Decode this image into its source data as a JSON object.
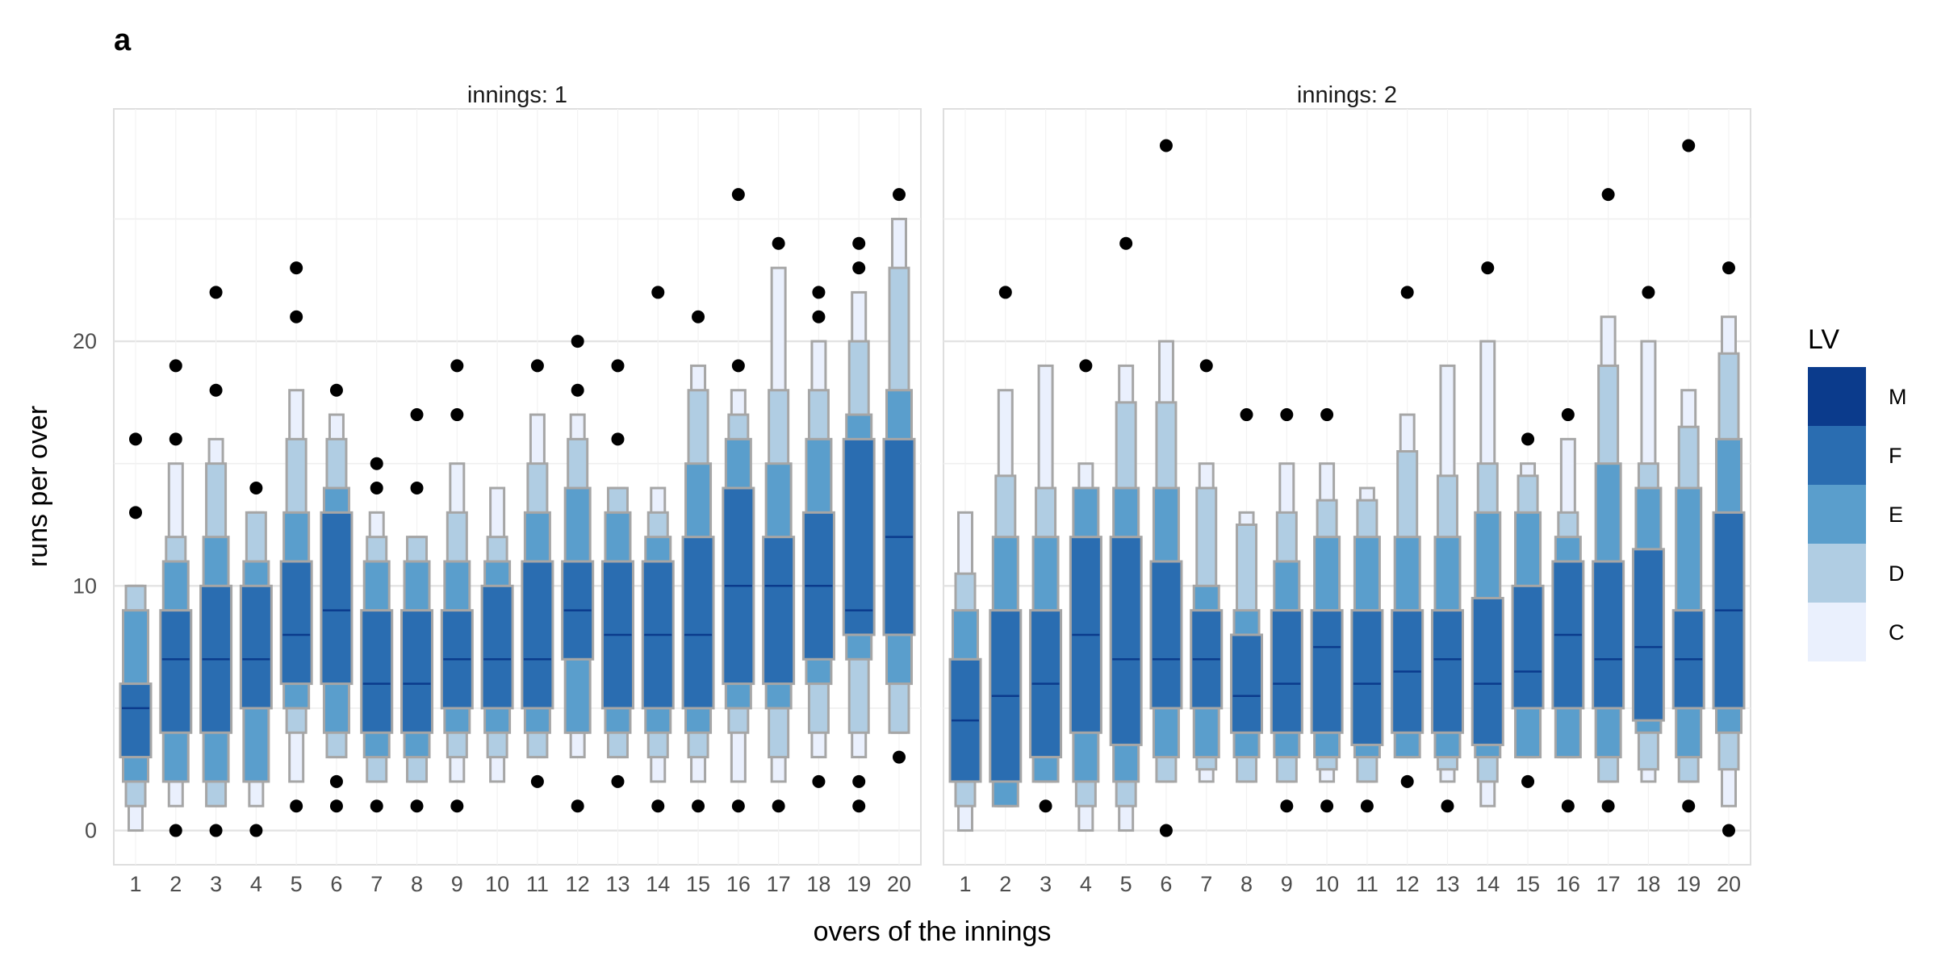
{
  "panel_tag": "a",
  "legend": {
    "title": "LV",
    "levels": [
      "M",
      "F",
      "E",
      "D",
      "C"
    ],
    "colors": {
      "M": "#0b3b8c",
      "F": "#2a6db1",
      "E": "#5a9ecc",
      "D": "#b0cde3",
      "C": "#eaf0fd"
    },
    "border_color": "#a6a6a6"
  },
  "chart_data": {
    "type": "letter-value boxplot",
    "xlabel": "overs of the innings",
    "ylabel": "runs per over",
    "ylim": [
      -1.4,
      29.5
    ],
    "yticks": [
      0,
      10,
      20
    ],
    "grid": true,
    "legend_placement": "right",
    "x_ticks": [
      "1",
      "2",
      "3",
      "4",
      "5",
      "6",
      "7",
      "8",
      "9",
      "10",
      "11",
      "12",
      "13",
      "14",
      "15",
      "16",
      "17",
      "18",
      "19",
      "20"
    ],
    "panels": [
      {
        "strip": "innings: 1",
        "overs": [
          {
            "over": 1,
            "M": 5,
            "F": [
              3,
              6
            ],
            "E": [
              2,
              9
            ],
            "D": [
              1,
              10
            ],
            "C": [
              0,
              10
            ],
            "outliers": [
              13,
              16
            ]
          },
          {
            "over": 2,
            "M": 7,
            "F": [
              4,
              9
            ],
            "E": [
              2,
              11
            ],
            "D": [
              2,
              12
            ],
            "C": [
              1,
              15
            ],
            "outliers": [
              0,
              16,
              19
            ]
          },
          {
            "over": 3,
            "M": 7,
            "F": [
              4,
              10
            ],
            "E": [
              2,
              12
            ],
            "D": [
              1,
              15
            ],
            "C": [
              1,
              16
            ],
            "outliers": [
              0,
              18,
              22
            ]
          },
          {
            "over": 4,
            "M": 7,
            "F": [
              5,
              10
            ],
            "E": [
              2,
              11
            ],
            "D": [
              2,
              13
            ],
            "C": [
              1,
              13
            ],
            "outliers": [
              0,
              14
            ]
          },
          {
            "over": 5,
            "M": 8,
            "F": [
              6,
              11
            ],
            "E": [
              5,
              13
            ],
            "D": [
              4,
              16
            ],
            "C": [
              2,
              18
            ],
            "outliers": [
              1,
              21,
              23
            ]
          },
          {
            "over": 6,
            "M": 9,
            "F": [
              6,
              13
            ],
            "E": [
              4,
              14
            ],
            "D": [
              3,
              16
            ],
            "C": [
              3,
              17
            ],
            "outliers": [
              1,
              2,
              18
            ]
          },
          {
            "over": 7,
            "M": 6,
            "F": [
              4,
              9
            ],
            "E": [
              3,
              11
            ],
            "D": [
              2,
              12
            ],
            "C": [
              2,
              13
            ],
            "outliers": [
              1,
              14,
              15
            ]
          },
          {
            "over": 8,
            "M": 6,
            "F": [
              4,
              9
            ],
            "E": [
              3,
              11
            ],
            "D": [
              2,
              12
            ],
            "C": [
              2,
              12
            ],
            "outliers": [
              1,
              14,
              17
            ]
          },
          {
            "over": 9,
            "M": 7,
            "F": [
              5,
              9
            ],
            "E": [
              4,
              11
            ],
            "D": [
              3,
              13
            ],
            "C": [
              2,
              15
            ],
            "outliers": [
              1,
              17,
              19
            ]
          },
          {
            "over": 10,
            "M": 7,
            "F": [
              5,
              10
            ],
            "E": [
              4,
              11
            ],
            "D": [
              3,
              12
            ],
            "C": [
              2,
              14
            ],
            "outliers": []
          },
          {
            "over": 11,
            "M": 7,
            "F": [
              5,
              11
            ],
            "E": [
              4,
              13
            ],
            "D": [
              3,
              15
            ],
            "C": [
              3,
              17
            ],
            "outliers": [
              2,
              19
            ]
          },
          {
            "over": 12,
            "M": 9,
            "F": [
              7,
              11
            ],
            "E": [
              4,
              14
            ],
            "D": [
              4,
              16
            ],
            "C": [
              3,
              17
            ],
            "outliers": [
              1,
              18,
              20
            ]
          },
          {
            "over": 13,
            "M": 8,
            "F": [
              5,
              11
            ],
            "E": [
              4,
              13
            ],
            "D": [
              3,
              14
            ],
            "C": [
              3,
              14
            ],
            "outliers": [
              2,
              16,
              19
            ]
          },
          {
            "over": 14,
            "M": 8,
            "F": [
              5,
              11
            ],
            "E": [
              4,
              12
            ],
            "D": [
              3,
              13
            ],
            "C": [
              2,
              14
            ],
            "outliers": [
              1,
              22
            ]
          },
          {
            "over": 15,
            "M": 8,
            "F": [
              5,
              12
            ],
            "E": [
              4,
              15
            ],
            "D": [
              3,
              18
            ],
            "C": [
              2,
              19
            ],
            "outliers": [
              1,
              21
            ]
          },
          {
            "over": 16,
            "M": 10,
            "F": [
              6,
              14
            ],
            "E": [
              5,
              16
            ],
            "D": [
              4,
              17
            ],
            "C": [
              2,
              18
            ],
            "outliers": [
              1,
              19,
              26
            ]
          },
          {
            "over": 17,
            "M": 10,
            "F": [
              6,
              12
            ],
            "E": [
              5,
              15
            ],
            "D": [
              3,
              18
            ],
            "C": [
              2,
              23
            ],
            "outliers": [
              1,
              24
            ]
          },
          {
            "over": 18,
            "M": 10,
            "F": [
              7,
              13
            ],
            "E": [
              6,
              16
            ],
            "D": [
              4,
              18
            ],
            "C": [
              3,
              20
            ],
            "outliers": [
              2,
              21,
              22
            ]
          },
          {
            "over": 19,
            "M": 9,
            "F": [
              8,
              16
            ],
            "E": [
              7,
              17
            ],
            "D": [
              4,
              20
            ],
            "C": [
              3,
              22
            ],
            "outliers": [
              1,
              2,
              23,
              24
            ]
          },
          {
            "over": 20,
            "M": 12,
            "F": [
              8,
              16
            ],
            "E": [
              6,
              18
            ],
            "D": [
              4,
              23
            ],
            "C": [
              4,
              25
            ],
            "outliers": [
              3,
              26
            ]
          }
        ]
      },
      {
        "strip": "innings: 2",
        "overs": [
          {
            "over": 1,
            "M": 4.5,
            "F": [
              2,
              7
            ],
            "E": [
              2,
              9
            ],
            "D": [
              1,
              10.5
            ],
            "C": [
              0,
              13
            ],
            "outliers": []
          },
          {
            "over": 2,
            "M": 5.5,
            "F": [
              2,
              9
            ],
            "E": [
              1,
              12
            ],
            "D": [
              1,
              14.5
            ],
            "C": [
              1,
              18
            ],
            "outliers": [
              22
            ]
          },
          {
            "over": 3,
            "M": 6,
            "F": [
              3,
              9
            ],
            "E": [
              2,
              12
            ],
            "D": [
              2,
              14
            ],
            "C": [
              2,
              19
            ],
            "outliers": [
              1
            ]
          },
          {
            "over": 4,
            "M": 8,
            "F": [
              4,
              12
            ],
            "E": [
              2,
              14
            ],
            "D": [
              1,
              14
            ],
            "C": [
              0,
              15
            ],
            "outliers": [
              19
            ]
          },
          {
            "over": 5,
            "M": 7,
            "F": [
              3.5,
              12
            ],
            "E": [
              2,
              14
            ],
            "D": [
              1,
              17.5
            ],
            "C": [
              0,
              19
            ],
            "outliers": [
              24
            ]
          },
          {
            "over": 6,
            "M": 7,
            "F": [
              5,
              11
            ],
            "E": [
              3,
              14
            ],
            "D": [
              2,
              17.5
            ],
            "C": [
              2,
              20
            ],
            "outliers": [
              0,
              28
            ]
          },
          {
            "over": 7,
            "M": 7,
            "F": [
              5,
              9
            ],
            "E": [
              3,
              10
            ],
            "D": [
              2.5,
              14
            ],
            "C": [
              2,
              15
            ],
            "outliers": [
              19
            ]
          },
          {
            "over": 8,
            "M": 5.5,
            "F": [
              4,
              8
            ],
            "E": [
              3,
              9
            ],
            "D": [
              2,
              12.5
            ],
            "C": [
              2,
              13
            ],
            "outliers": [
              17
            ]
          },
          {
            "over": 9,
            "M": 6,
            "F": [
              4,
              9
            ],
            "E": [
              3,
              11
            ],
            "D": [
              2,
              13
            ],
            "C": [
              2,
              15
            ],
            "outliers": [
              1,
              17
            ]
          },
          {
            "over": 10,
            "M": 7.5,
            "F": [
              4,
              9
            ],
            "E": [
              3,
              12
            ],
            "D": [
              2.5,
              13.5
            ],
            "C": [
              2,
              15
            ],
            "outliers": [
              1,
              17
            ]
          },
          {
            "over": 11,
            "M": 6,
            "F": [
              3.5,
              9
            ],
            "E": [
              3,
              12
            ],
            "D": [
              2,
              13.5
            ],
            "C": [
              2,
              14
            ],
            "outliers": [
              1
            ]
          },
          {
            "over": 12,
            "M": 6.5,
            "F": [
              4,
              9
            ],
            "E": [
              3,
              12
            ],
            "D": [
              3,
              15.5
            ],
            "C": [
              3,
              17
            ],
            "outliers": [
              2,
              22
            ]
          },
          {
            "over": 13,
            "M": 7,
            "F": [
              4,
              9
            ],
            "E": [
              3,
              12
            ],
            "D": [
              2.5,
              14.5
            ],
            "C": [
              2,
              19
            ],
            "outliers": [
              1
            ]
          },
          {
            "over": 14,
            "M": 6,
            "F": [
              3.5,
              9.5
            ],
            "E": [
              3,
              13
            ],
            "D": [
              2,
              15
            ],
            "C": [
              1,
              20
            ],
            "outliers": [
              23
            ]
          },
          {
            "over": 15,
            "M": 6.5,
            "F": [
              5,
              10
            ],
            "E": [
              3,
              13
            ],
            "D": [
              3,
              14.5
            ],
            "C": [
              3,
              15
            ],
            "outliers": [
              2,
              16
            ]
          },
          {
            "over": 16,
            "M": 8,
            "F": [
              5,
              11
            ],
            "E": [
              3,
              12
            ],
            "D": [
              3,
              13
            ],
            "C": [
              3,
              16
            ],
            "outliers": [
              1,
              17
            ]
          },
          {
            "over": 17,
            "M": 7,
            "F": [
              5,
              11
            ],
            "E": [
              3,
              15
            ],
            "D": [
              2,
              19
            ],
            "C": [
              2,
              21
            ],
            "outliers": [
              1,
              26
            ]
          },
          {
            "over": 18,
            "M": 7.5,
            "F": [
              4.5,
              11.5
            ],
            "E": [
              4,
              14
            ],
            "D": [
              2.5,
              15
            ],
            "C": [
              2,
              20
            ],
            "outliers": [
              22
            ]
          },
          {
            "over": 19,
            "M": 7,
            "F": [
              5,
              9
            ],
            "E": [
              3,
              14
            ],
            "D": [
              2,
              16.5
            ],
            "C": [
              2,
              18
            ],
            "outliers": [
              1,
              28
            ]
          },
          {
            "over": 20,
            "M": 9,
            "F": [
              5,
              13
            ],
            "E": [
              4,
              16
            ],
            "D": [
              2.5,
              19.5
            ],
            "C": [
              1,
              21
            ],
            "outliers": [
              0,
              23
            ]
          }
        ]
      }
    ]
  }
}
